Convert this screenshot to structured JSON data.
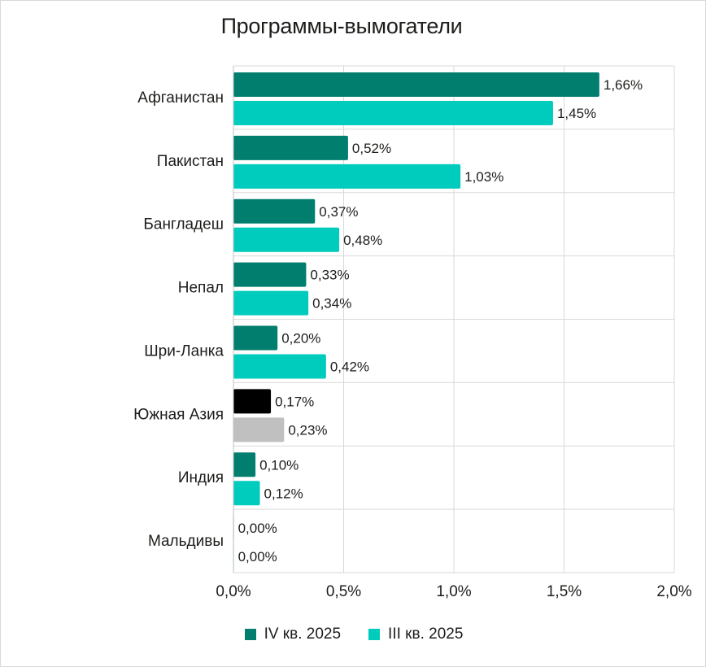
{
  "chart_data": {
    "type": "bar",
    "orientation": "horizontal",
    "title": "Программы-вымогатели",
    "categories": [
      "Афганистан",
      "Пакистан",
      "Бангладеш",
      "Непал",
      "Шри-Ланка",
      "Южная Азия",
      "Индия",
      "Мальдивы"
    ],
    "series": [
      {
        "name": "IV кв. 2025",
        "color": "#017e6d",
        "values": [
          1.66,
          0.52,
          0.37,
          0.33,
          0.2,
          0.17,
          0.1,
          0.0
        ],
        "labels": [
          "1,66%",
          "0,52%",
          "0,37%",
          "0,33%",
          "0,20%",
          "0,17%",
          "0,10%",
          "0,00%"
        ]
      },
      {
        "name": "III кв. 2025",
        "color": "#00ccbe",
        "values": [
          1.45,
          1.03,
          0.48,
          0.34,
          0.42,
          0.23,
          0.12,
          0.0
        ],
        "labels": [
          "1,45%",
          "1,03%",
          "0,48%",
          "0,34%",
          "0,42%",
          "0,23%",
          "0,12%",
          "0,00%"
        ]
      }
    ],
    "highlight": {
      "category": "Южная Азия",
      "colors": [
        "#000000",
        "#c0c0c0"
      ]
    },
    "xlim": [
      0,
      2.0
    ],
    "xticks": [
      0,
      0.5,
      1.0,
      1.5,
      2.0
    ],
    "xtick_labels": [
      "0,0%",
      "0,5%",
      "1,0%",
      "1,5%",
      "2,0%"
    ],
    "grid": true,
    "legend_position": "bottom"
  }
}
